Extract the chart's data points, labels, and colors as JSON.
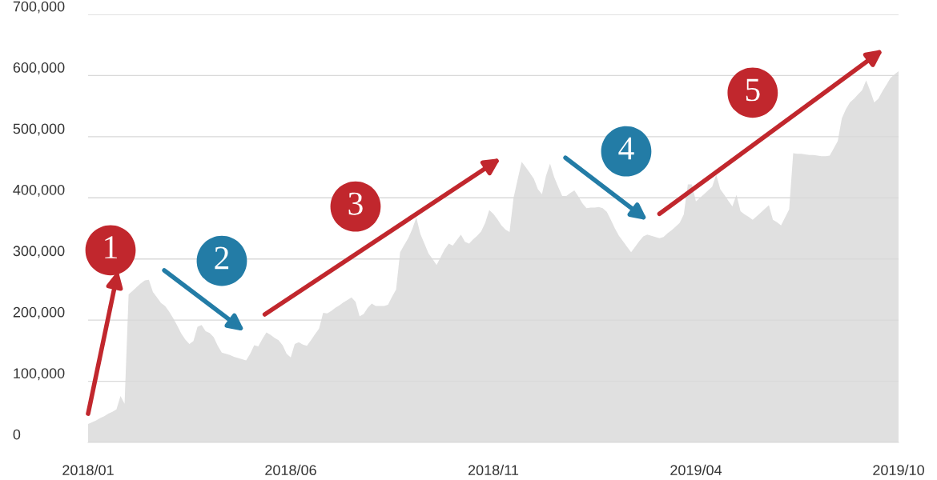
{
  "chart_data": {
    "type": "area",
    "categories": [
      "2018/01",
      null,
      null,
      null,
      null,
      null,
      null,
      null,
      null,
      null,
      null,
      null,
      null,
      null,
      null,
      null,
      null,
      null,
      null,
      null,
      null,
      null,
      null,
      null,
      null,
      null,
      null,
      null,
      null,
      null,
      null,
      null,
      null,
      null,
      null,
      null,
      null,
      null,
      null,
      null,
      null,
      null,
      null,
      null,
      null,
      null,
      null,
      null,
      null,
      null,
      "2018/06",
      null,
      null,
      null,
      null,
      null,
      null,
      null,
      null,
      null,
      null,
      null,
      null,
      null,
      null,
      null,
      null,
      null,
      null,
      null,
      null,
      null,
      null,
      null,
      null,
      null,
      null,
      null,
      null,
      null,
      null,
      null,
      null,
      null,
      null,
      null,
      null,
      null,
      null,
      null,
      null,
      null,
      null,
      null,
      null,
      null,
      null,
      null,
      null,
      null,
      "2018/11",
      null,
      null,
      null,
      null,
      null,
      null,
      null,
      null,
      null,
      null,
      null,
      null,
      null,
      null,
      null,
      null,
      null,
      null,
      null,
      null,
      null,
      null,
      null,
      null,
      null,
      null,
      null,
      null,
      null,
      null,
      null,
      null,
      null,
      null,
      null,
      null,
      null,
      null,
      null,
      null,
      null,
      null,
      null,
      null,
      null,
      null,
      null,
      null,
      null,
      "2019/04",
      null,
      null,
      null,
      null,
      null,
      null,
      null,
      null,
      null,
      null,
      null,
      null,
      null,
      null,
      null,
      null,
      null,
      null,
      null,
      null,
      null,
      null,
      null,
      null,
      null,
      null,
      null,
      null,
      null,
      null,
      null,
      null,
      null,
      null,
      null,
      null,
      null,
      null,
      null,
      null,
      null,
      null,
      null,
      null,
      null,
      null,
      null,
      null,
      null,
      "2019/10"
    ],
    "series": [
      {
        "color": "#e0e0e0",
        "values": [
          30000,
          33000,
          36000,
          40000,
          43000,
          47000,
          50000,
          54000,
          76000,
          63000,
          242000,
          248000,
          254000,
          260000,
          265000,
          266000,
          246000,
          237000,
          228000,
          223000,
          214000,
          203000,
          191000,
          178000,
          168000,
          161000,
          166000,
          189000,
          192000,
          182000,
          179000,
          172000,
          158000,
          147000,
          145000,
          143000,
          140000,
          138000,
          136000,
          134000,
          145000,
          159000,
          157000,
          169000,
          180000,
          176000,
          171000,
          167000,
          159000,
          145000,
          139000,
          161000,
          164000,
          160000,
          158000,
          167000,
          177000,
          186000,
          212000,
          211000,
          215000,
          220000,
          224000,
          229000,
          233000,
          237000,
          230000,
          206000,
          210000,
          220000,
          227000,
          223000,
          223000,
          223000,
          225000,
          238000,
          250000,
          311000,
          323000,
          334000,
          349000,
          368000,
          341000,
          325000,
          309000,
          300000,
          290000,
          303000,
          316000,
          325000,
          322000,
          331000,
          340000,
          328000,
          325000,
          332000,
          338000,
          345000,
          359000,
          380000,
          374000,
          365000,
          355000,
          348000,
          344000,
          400000,
          430000,
          459000,
          450000,
          441000,
          431000,
          414000,
          406000,
          436000,
          456000,
          434000,
          418000,
          403000,
          403000,
          408000,
          412000,
          402000,
          391000,
          383000,
          384000,
          384000,
          385000,
          383000,
          377000,
          364000,
          350000,
          338000,
          329000,
          320000,
          311000,
          320000,
          329000,
          337000,
          340000,
          338000,
          336000,
          334000,
          336000,
          342000,
          347000,
          353000,
          359000,
          373000,
          422000,
          422000,
          394000,
          400000,
          406000,
          412000,
          418000,
          438000,
          414000,
          405000,
          395000,
          386000,
          405000,
          378000,
          373000,
          369000,
          364000,
          370000,
          376000,
          382000,
          388000,
          364000,
          360000,
          355000,
          368000,
          381000,
          473000,
          472000,
          472000,
          471000,
          470000,
          470000,
          469000,
          468000,
          468000,
          469000,
          481000,
          493000,
          530000,
          545000,
          556000,
          562000,
          569000,
          576000,
          592000,
          575000,
          556000,
          562000,
          574000,
          585000,
          596000,
          602000,
          607000
        ]
      }
    ],
    "ylim": [
      0,
      700000
    ],
    "yticks": [
      {
        "value": 0,
        "label": "0"
      },
      {
        "value": 100000,
        "label": "100,000"
      },
      {
        "value": 200000,
        "label": "200,000"
      },
      {
        "value": 300000,
        "label": "300,000"
      },
      {
        "value": 400000,
        "label": "400,000"
      },
      {
        "value": 500000,
        "label": "500,000"
      },
      {
        "value": 600000,
        "label": "600,000"
      },
      {
        "value": 700000,
        "label": "700,000"
      }
    ],
    "grid": "y",
    "annotations": [
      "1",
      "2",
      "3",
      "4",
      "5"
    ]
  }
}
